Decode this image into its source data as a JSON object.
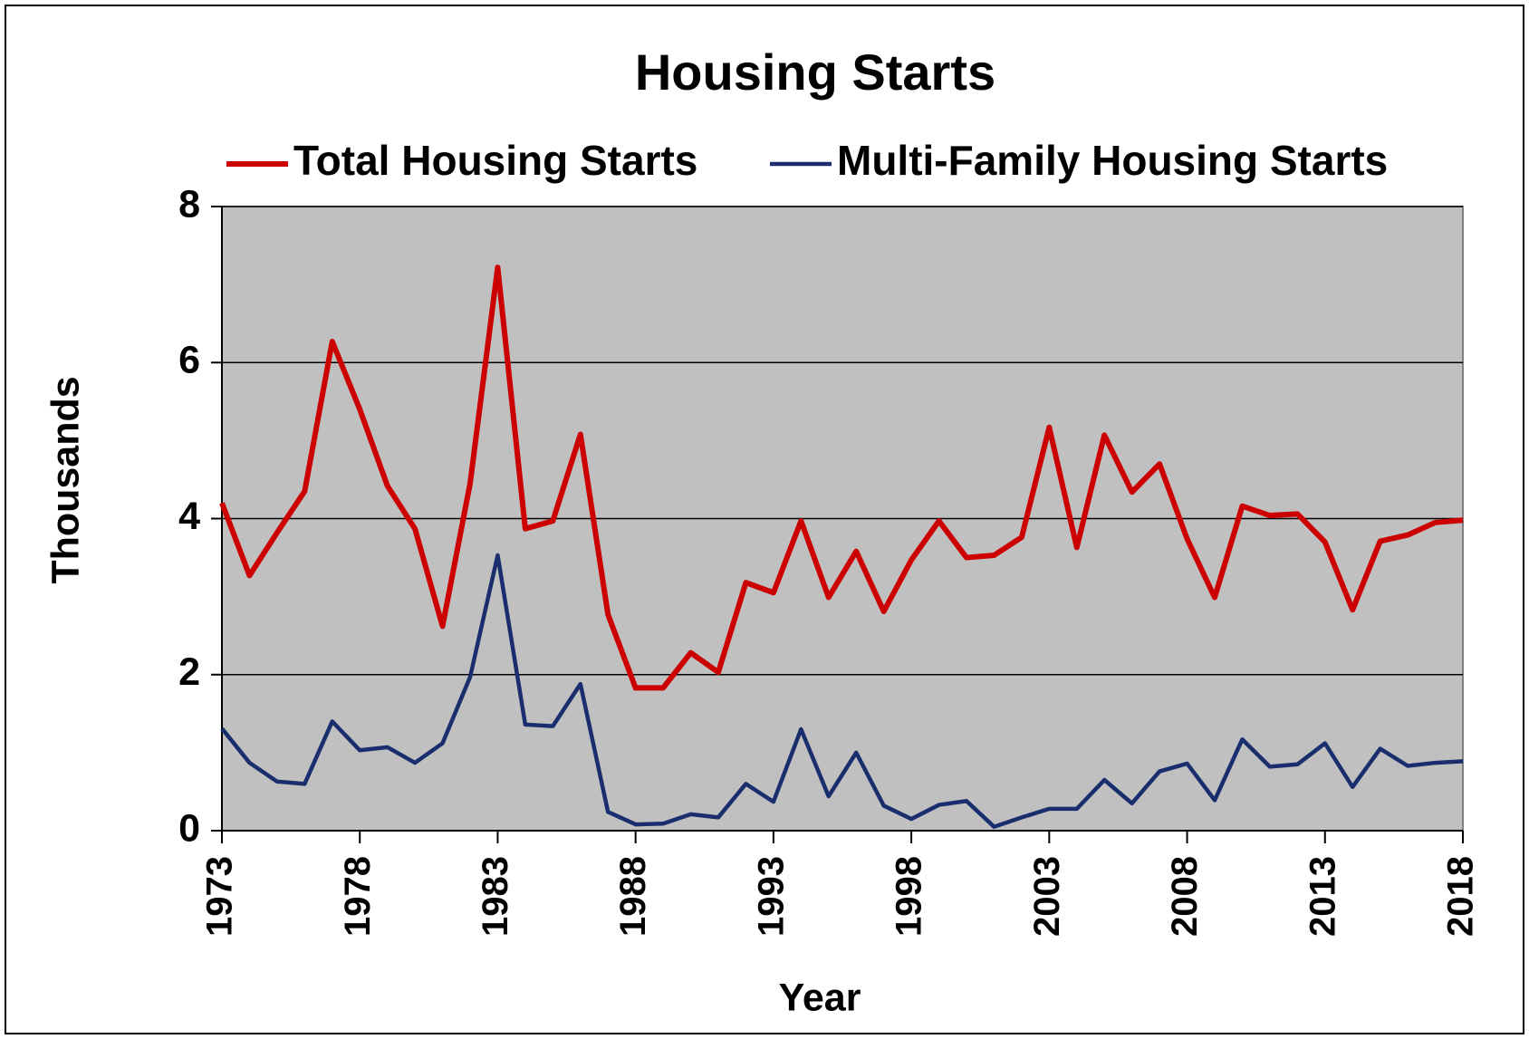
{
  "chart_data": {
    "type": "line",
    "title": "Housing Starts",
    "xlabel": "Year",
    "ylabel": "Thousands",
    "x": [
      1973,
      1974,
      1975,
      1976,
      1977,
      1978,
      1979,
      1980,
      1981,
      1982,
      1983,
      1984,
      1985,
      1986,
      1987,
      1988,
      1989,
      1990,
      1991,
      1992,
      1993,
      1994,
      1995,
      1996,
      1997,
      1998,
      1999,
      2000,
      2001,
      2002,
      2003,
      2004,
      2005,
      2006,
      2007,
      2008,
      2009,
      2010,
      2011,
      2012,
      2013,
      2014,
      2015,
      2016,
      2017,
      2018
    ],
    "series": [
      {
        "name": "Total Housing Starts",
        "color": "#cc0000",
        "values": [
          4.2,
          3.27,
          3.82,
          4.35,
          6.27,
          5.4,
          4.42,
          3.87,
          2.62,
          4.45,
          7.22,
          3.87,
          3.97,
          5.08,
          2.77,
          1.83,
          1.83,
          2.28,
          2.03,
          3.18,
          3.05,
          3.97,
          2.99,
          3.58,
          2.81,
          3.47,
          3.97,
          3.5,
          3.53,
          3.76,
          5.17,
          3.63,
          5.07,
          4.34,
          4.7,
          3.74,
          2.99,
          4.16,
          4.04,
          4.06,
          3.7,
          2.83,
          3.71,
          3.79,
          3.95,
          3.98
        ]
      },
      {
        "name": "Multi-Family Housing Starts",
        "color": "#1a2e6e",
        "values": [
          1.31,
          0.87,
          0.63,
          0.6,
          1.4,
          1.03,
          1.07,
          0.87,
          1.12,
          1.97,
          3.53,
          1.36,
          1.34,
          1.88,
          0.24,
          0.08,
          0.09,
          0.21,
          0.17,
          0.6,
          0.37,
          1.3,
          0.44,
          1.0,
          0.32,
          0.15,
          0.33,
          0.38,
          0.05,
          0.17,
          0.28,
          0.28,
          0.65,
          0.35,
          0.76,
          0.86,
          0.39,
          1.17,
          0.82,
          0.85,
          1.12,
          0.56,
          1.05,
          0.83,
          0.87,
          0.89
        ]
      }
    ],
    "xlim": [
      1973,
      2018
    ],
    "xticks": [
      1973,
      1978,
      1983,
      1988,
      1993,
      1998,
      2003,
      2008,
      2013,
      2018
    ],
    "ylim": [
      0,
      8
    ],
    "yticks": [
      0,
      2,
      4,
      6,
      8
    ],
    "grid": true,
    "legend": "top",
    "plot_background": "#c0c0c0"
  }
}
